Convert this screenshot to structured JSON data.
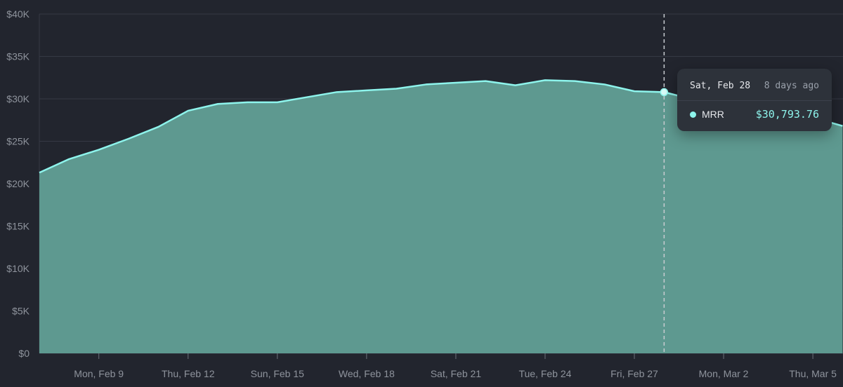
{
  "chart_data": {
    "type": "area",
    "categories": [
      "Feb 7",
      "Feb 8",
      "Feb 9",
      "Feb 10",
      "Feb 11",
      "Feb 12",
      "Feb 13",
      "Feb 14",
      "Feb 15",
      "Feb 16",
      "Feb 17",
      "Feb 18",
      "Feb 19",
      "Feb 20",
      "Feb 21",
      "Feb 22",
      "Feb 23",
      "Feb 24",
      "Feb 25",
      "Feb 26",
      "Feb 27",
      "Feb 28",
      "Mar 1",
      "Mar 2",
      "Mar 3",
      "Mar 4",
      "Mar 5",
      "Mar 6"
    ],
    "series": [
      {
        "name": "MRR",
        "color": "#8ef4ec",
        "fill": "#5e9990",
        "values": [
          21300,
          22900,
          24000,
          25300,
          26700,
          28600,
          29400,
          29600,
          29600,
          30200,
          30800,
          31000,
          31200,
          31700,
          31900,
          32100,
          31600,
          32200,
          32100,
          31700,
          30900,
          30793.76,
          29900,
          29600,
          29300,
          28600,
          27800,
          26800
        ]
      }
    ],
    "ylim": [
      0,
      40000
    ],
    "yticks": [
      "$0",
      "$5K",
      "$10K",
      "$15K",
      "$20K",
      "$25K",
      "$30K",
      "$35K",
      "$40K"
    ],
    "xticks": [
      {
        "label": "Mon, Feb 9",
        "index": 2
      },
      {
        "label": "Thu, Feb 12",
        "index": 5
      },
      {
        "label": "Sun, Feb 15",
        "index": 8
      },
      {
        "label": "Wed, Feb 18",
        "index": 11
      },
      {
        "label": "Sat, Feb 21",
        "index": 14
      },
      {
        "label": "Tue, Feb 24",
        "index": 17
      },
      {
        "label": "Fri, Feb 27",
        "index": 20
      },
      {
        "label": "Mon, Mar 2",
        "index": 23
      },
      {
        "label": "Thu, Mar 5",
        "index": 26
      }
    ],
    "grid": true,
    "hover_index": 21
  },
  "tooltip": {
    "date": "Sat, Feb 28",
    "ago": "8 days ago",
    "series_name": "MRR",
    "value": "$30,793.76"
  },
  "colors": {
    "background": "#22252e",
    "grid": "#353944",
    "axis_text": "#8e939c",
    "line": "#8ef4ec",
    "fill": "#5e9990"
  }
}
